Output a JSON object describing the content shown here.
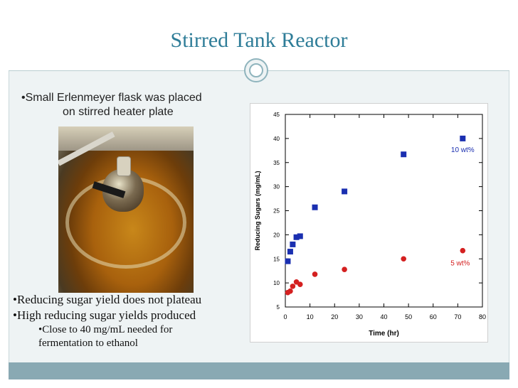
{
  "slide": {
    "title": "Stirred Tank Reactor",
    "caption": [
      "•Small Erlenmeyer flask was placed",
      "on stirred heater plate"
    ],
    "bullets": [
      "•Reducing sugar yield does not plateau",
      "•High reducing sugar yields produced"
    ],
    "subbullets": [
      "•Close to 40 mg/mL needed for",
      "fermentation to ethanol"
    ],
    "photo_icon": "flask-photo",
    "colors": {
      "title": "#2f7d98",
      "frame": "#eef3f4",
      "footer": "#89a9b3"
    }
  },
  "chart_data": {
    "type": "scatter",
    "xlabel": "Time (hr)",
    "ylabel": "Reducing Sugars (mg/mL)",
    "xlim": [
      0,
      80
    ],
    "ylim": [
      5,
      45
    ],
    "xticks": [
      0,
      10,
      20,
      30,
      40,
      50,
      60,
      70,
      80
    ],
    "yticks": [
      5,
      10,
      15,
      20,
      25,
      30,
      35,
      40,
      45
    ],
    "grid": false,
    "series": [
      {
        "name": "10 wt%",
        "color": "#1a2fb0",
        "marker": "square",
        "points": [
          [
            1,
            14.5
          ],
          [
            2,
            16.5
          ],
          [
            3,
            18
          ],
          [
            4.5,
            19.5
          ],
          [
            6,
            19.7
          ],
          [
            12,
            25.7
          ],
          [
            24,
            29
          ],
          [
            48,
            36.7
          ],
          [
            72,
            40
          ]
        ]
      },
      {
        "name": "5 wt%",
        "color": "#d42020",
        "marker": "circle",
        "points": [
          [
            1,
            8
          ],
          [
            2,
            8.3
          ],
          [
            3,
            9.3
          ],
          [
            4.5,
            10.2
          ],
          [
            6,
            9.7
          ],
          [
            12,
            11.8
          ],
          [
            24,
            12.8
          ],
          [
            48,
            15
          ],
          [
            72,
            16.7
          ]
        ]
      }
    ],
    "annotations": [
      {
        "text": "10 wt%",
        "color": "#1a2fb0",
        "x": 72,
        "y": 37.8
      },
      {
        "text": "5 wt%",
        "color": "#d42020",
        "x": 71,
        "y": 14.2
      }
    ]
  }
}
